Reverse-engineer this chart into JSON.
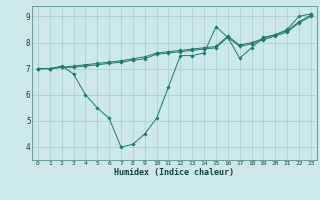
{
  "xlabel": "Humidex (Indice chaleur)",
  "xlim": [
    -0.5,
    23.5
  ],
  "ylim": [
    3.5,
    9.4
  ],
  "xticks": [
    0,
    1,
    2,
    3,
    4,
    5,
    6,
    7,
    8,
    9,
    10,
    11,
    12,
    13,
    14,
    15,
    16,
    17,
    18,
    19,
    20,
    21,
    22,
    23
  ],
  "yticks": [
    4,
    5,
    6,
    7,
    8,
    9
  ],
  "bg_color": "#cce8e8",
  "line_color": "#1a7a6e",
  "grid_color": "#aacccc",
  "lines": [
    {
      "x": [
        0,
        1,
        2,
        3,
        4,
        5,
        6,
        7,
        8,
        9,
        10,
        11,
        12,
        13,
        14,
        15,
        16,
        17,
        18,
        19,
        20,
        21,
        22,
        23
      ],
      "y": [
        7.0,
        7.0,
        7.1,
        6.8,
        6.0,
        5.5,
        5.1,
        4.0,
        4.1,
        4.5,
        5.1,
        6.3,
        7.5,
        7.5,
        7.6,
        8.6,
        8.2,
        7.4,
        7.8,
        8.2,
        8.3,
        8.5,
        9.0,
        9.1
      ]
    },
    {
      "x": [
        0,
        1,
        2,
        3,
        4,
        5,
        6,
        7,
        8,
        9,
        10,
        11,
        12,
        13,
        14,
        15,
        16,
        17,
        18,
        19,
        20,
        21,
        22,
        23
      ],
      "y": [
        7.0,
        7.0,
        7.05,
        7.1,
        7.15,
        7.2,
        7.25,
        7.3,
        7.38,
        7.45,
        7.6,
        7.65,
        7.7,
        7.75,
        7.8,
        7.85,
        8.25,
        7.9,
        8.0,
        8.15,
        8.3,
        8.45,
        8.8,
        9.05
      ]
    },
    {
      "x": [
        0,
        1,
        2,
        3,
        4,
        5,
        6,
        7,
        8,
        9,
        10,
        11,
        12,
        13,
        14,
        15,
        16,
        17,
        18,
        19,
        20,
        21,
        22,
        23
      ],
      "y": [
        7.0,
        7.0,
        7.05,
        7.05,
        7.1,
        7.15,
        7.2,
        7.25,
        7.32,
        7.38,
        7.55,
        7.6,
        7.65,
        7.7,
        7.75,
        7.8,
        8.2,
        7.85,
        7.95,
        8.1,
        8.25,
        8.4,
        8.75,
        9.0
      ]
    }
  ]
}
